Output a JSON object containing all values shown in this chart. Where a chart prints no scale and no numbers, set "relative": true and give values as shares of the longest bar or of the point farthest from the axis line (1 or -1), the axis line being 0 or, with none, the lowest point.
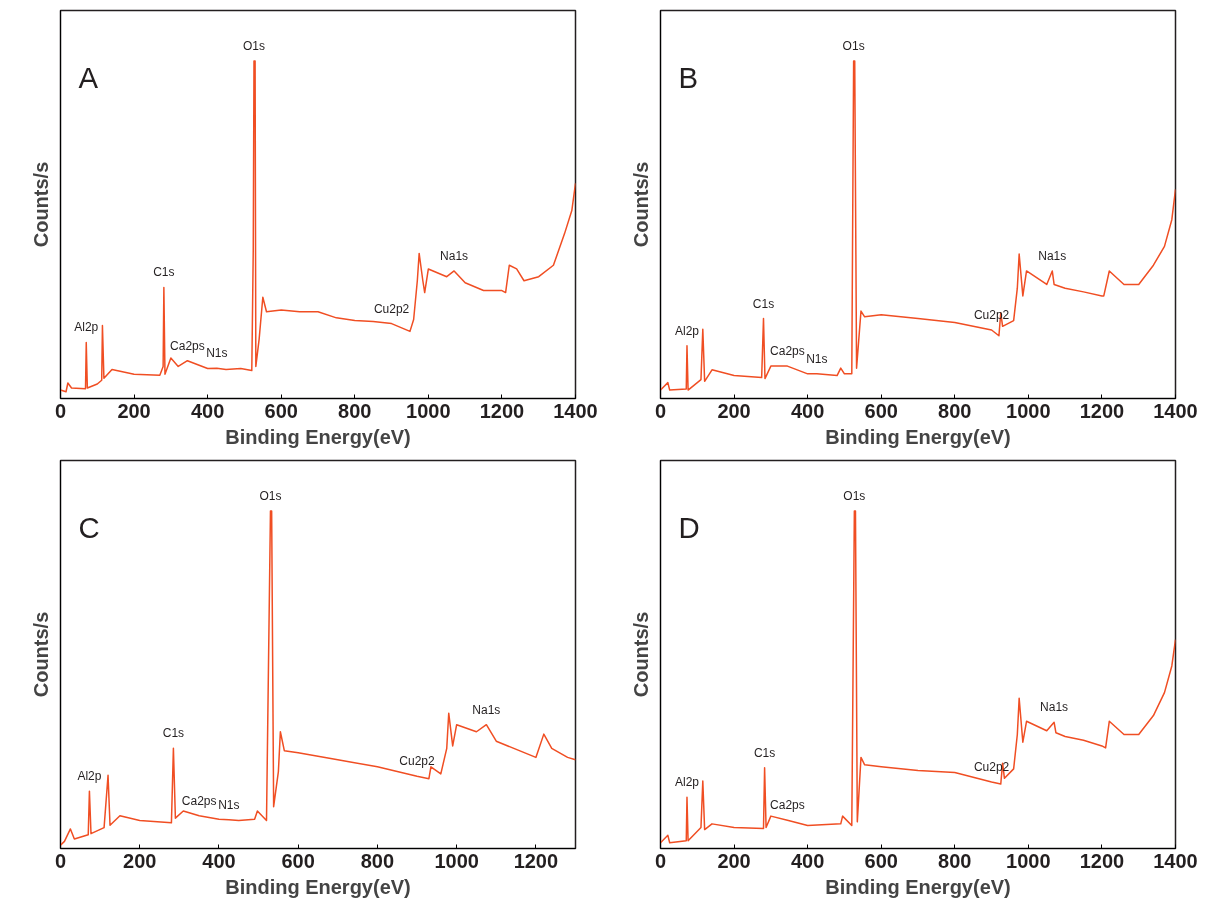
{
  "chart_data": [
    {
      "type": "line",
      "title": "A",
      "xlabel": "Binding Energy(eV)",
      "ylabel": "Counts/s",
      "relative": true,
      "tick_labels": "x",
      "xlim": [
        0,
        1400
      ],
      "xticks": [
        0,
        200,
        400,
        600,
        800,
        1000,
        1200,
        1400
      ],
      "x": [
        0,
        15,
        20,
        30,
        68,
        70,
        73,
        100,
        112,
        114,
        118,
        140,
        200,
        270,
        279,
        281,
        284,
        300,
        320,
        345,
        400,
        425,
        450,
        490,
        520,
        524,
        526,
        529,
        531,
        540,
        550,
        560,
        600,
        650,
        700,
        750,
        800,
        850,
        900,
        950,
        960,
        970,
        975,
        985,
        990,
        1000,
        1050,
        1070,
        1100,
        1150,
        1200,
        1210,
        1220,
        1240,
        1260,
        1300,
        1340,
        1370,
        1390,
        1400
      ],
      "series": [
        {
          "color": "#f04e23",
          "values": [
            0.025,
            0.02,
            0.046,
            0.031,
            0.029,
            0.166,
            0.031,
            0.043,
            0.054,
            0.216,
            0.06,
            0.086,
            0.072,
            0.069,
            0.095,
            0.329,
            0.072,
            0.12,
            0.095,
            0.112,
            0.089,
            0.09,
            0.086,
            0.089,
            0.083,
            0.44,
            1.0,
            1.0,
            0.095,
            0.176,
            0.3,
            0.257,
            0.262,
            0.257,
            0.257,
            0.239,
            0.231,
            0.228,
            0.222,
            0.199,
            0.234,
            0.349,
            0.43,
            0.349,
            0.314,
            0.384,
            0.361,
            0.378,
            0.343,
            0.32,
            0.32,
            0.314,
            0.395,
            0.384,
            0.349,
            0.361,
            0.395,
            0.488,
            0.557,
            0.638
          ]
        }
      ],
      "annotations": [
        {
          "text": "Al2p",
          "x": 70,
          "y": 0.166
        },
        {
          "text": "C1s",
          "x": 281,
          "y": 0.329
        },
        {
          "text": "Ca2ps",
          "x": 345,
          "y": 0.112
        },
        {
          "text": "N1s",
          "x": 425,
          "y": 0.09
        },
        {
          "text": "O1s",
          "x": 526,
          "y": 1.0
        },
        {
          "text": "Cu2p2",
          "x": 900,
          "y": 0.222
        },
        {
          "text": "Na1s",
          "x": 1070,
          "y": 0.378
        }
      ]
    },
    {
      "type": "line",
      "title": "B",
      "xlabel": "Binding Energy(eV)",
      "ylabel": "Counts/s",
      "relative": true,
      "tick_labels": "x",
      "xlim": [
        0,
        1400
      ],
      "xticks": [
        0,
        200,
        400,
        600,
        800,
        1000,
        1200,
        1400
      ],
      "x": [
        0,
        20,
        25,
        70,
        72,
        75,
        110,
        115,
        120,
        140,
        200,
        275,
        280,
        284,
        300,
        345,
        400,
        425,
        480,
        490,
        500,
        520,
        525,
        528,
        533,
        545,
        555,
        600,
        700,
        800,
        900,
        920,
        925,
        930,
        960,
        970,
        975,
        985,
        995,
        1050,
        1065,
        1070,
        1100,
        1150,
        1200,
        1205,
        1220,
        1260,
        1300,
        1340,
        1370,
        1390,
        1400
      ],
      "series": [
        {
          "color": "#f04e23",
          "values": [
            0.025,
            0.047,
            0.025,
            0.028,
            0.156,
            0.025,
            0.056,
            0.205,
            0.051,
            0.085,
            0.068,
            0.062,
            0.237,
            0.059,
            0.096,
            0.096,
            0.073,
            0.073,
            0.068,
            0.09,
            0.073,
            0.073,
            1.0,
            1.0,
            0.09,
            0.259,
            0.242,
            0.248,
            0.237,
            0.225,
            0.203,
            0.186,
            0.254,
            0.214,
            0.231,
            0.327,
            0.428,
            0.304,
            0.378,
            0.338,
            0.378,
            0.338,
            0.327,
            0.316,
            0.304,
            0.304,
            0.378,
            0.338,
            0.338,
            0.395,
            0.451,
            0.53,
            0.62
          ]
        }
      ],
      "annotations": [
        {
          "text": "Al2p",
          "x": 72,
          "y": 0.156
        },
        {
          "text": "C1s",
          "x": 280,
          "y": 0.237
        },
        {
          "text": "Ca2ps",
          "x": 345,
          "y": 0.096
        },
        {
          "text": "N1s",
          "x": 425,
          "y": 0.073
        },
        {
          "text": "O1s",
          "x": 525,
          "y": 1.0
        },
        {
          "text": "Cu2p2",
          "x": 900,
          "y": 0.203
        },
        {
          "text": "Na1s",
          "x": 1065,
          "y": 0.378
        }
      ]
    },
    {
      "type": "line",
      "title": "C",
      "xlabel": "Binding Energy(eV)",
      "ylabel": "Counts/s",
      "relative": true,
      "tick_labels": "x",
      "xlim": [
        0,
        1300
      ],
      "xticks": [
        0,
        200,
        400,
        600,
        800,
        1000,
        1200
      ],
      "x": [
        0,
        10,
        25,
        35,
        70,
        73,
        77,
        110,
        120,
        125,
        150,
        200,
        280,
        285,
        290,
        310,
        350,
        400,
        425,
        450,
        490,
        497,
        520,
        530,
        533,
        538,
        550,
        555,
        565,
        600,
        700,
        800,
        900,
        930,
        935,
        960,
        975,
        980,
        990,
        1000,
        1050,
        1075,
        1100,
        1200,
        1220,
        1240,
        1280,
        1300
      ],
      "series": [
        {
          "color": "#f04e23",
          "values": [
            0.01,
            0.021,
            0.058,
            0.028,
            0.041,
            0.17,
            0.044,
            0.062,
            0.217,
            0.069,
            0.097,
            0.083,
            0.076,
            0.297,
            0.09,
            0.111,
            0.097,
            0.087,
            0.085,
            0.083,
            0.087,
            0.111,
            0.083,
            1.0,
            1.0,
            0.124,
            0.228,
            0.346,
            0.29,
            0.284,
            0.263,
            0.242,
            0.214,
            0.207,
            0.242,
            0.221,
            0.297,
            0.401,
            0.304,
            0.367,
            0.346,
            0.367,
            0.318,
            0.27,
            0.339,
            0.297,
            0.27,
            0.263
          ]
        }
      ],
      "annotations": [
        {
          "text": "Al2p",
          "x": 73,
          "y": 0.17
        },
        {
          "text": "C1s",
          "x": 285,
          "y": 0.297
        },
        {
          "text": "Ca2ps",
          "x": 350,
          "y": 0.097
        },
        {
          "text": "N1s",
          "x": 425,
          "y": 0.085
        },
        {
          "text": "O1s",
          "x": 530,
          "y": 1.0
        },
        {
          "text": "Cu2p2",
          "x": 900,
          "y": 0.214
        },
        {
          "text": "Na1s",
          "x": 1075,
          "y": 0.367
        }
      ]
    },
    {
      "type": "line",
      "title": "D",
      "xlabel": "Binding Energy(eV)",
      "ylabel": "Counts/s",
      "relative": true,
      "tick_labels": "x",
      "xlim": [
        0,
        1400
      ],
      "xticks": [
        0,
        200,
        400,
        600,
        800,
        1000,
        1200,
        1400
      ],
      "x": [
        0,
        20,
        25,
        70,
        72,
        75,
        110,
        115,
        120,
        140,
        200,
        280,
        283,
        287,
        300,
        345,
        400,
        490,
        495,
        520,
        527,
        530,
        535,
        545,
        555,
        600,
        700,
        800,
        900,
        925,
        930,
        935,
        960,
        970,
        975,
        985,
        995,
        1050,
        1070,
        1075,
        1100,
        1150,
        1200,
        1210,
        1220,
        1260,
        1300,
        1340,
        1370,
        1390,
        1400
      ],
      "series": [
        {
          "color": "#f04e23",
          "values": [
            0.017,
            0.039,
            0.017,
            0.023,
            0.152,
            0.023,
            0.062,
            0.2,
            0.056,
            0.073,
            0.062,
            0.059,
            0.239,
            0.062,
            0.096,
            0.084,
            0.068,
            0.073,
            0.096,
            0.068,
            1.0,
            1.0,
            0.079,
            0.27,
            0.248,
            0.242,
            0.231,
            0.225,
            0.197,
            0.191,
            0.253,
            0.208,
            0.236,
            0.338,
            0.445,
            0.315,
            0.377,
            0.349,
            0.374,
            0.343,
            0.332,
            0.321,
            0.304,
            0.298,
            0.377,
            0.338,
            0.338,
            0.394,
            0.462,
            0.541,
            0.619
          ]
        }
      ],
      "annotations": [
        {
          "text": "Al2p",
          "x": 72,
          "y": 0.152
        },
        {
          "text": "C1s",
          "x": 283,
          "y": 0.239
        },
        {
          "text": "Ca2ps",
          "x": 345,
          "y": 0.084
        },
        {
          "text": "O1s",
          "x": 527,
          "y": 1.0
        },
        {
          "text": "Cu2p2",
          "x": 900,
          "y": 0.197
        },
        {
          "text": "Na1s",
          "x": 1070,
          "y": 0.374
        }
      ]
    }
  ]
}
